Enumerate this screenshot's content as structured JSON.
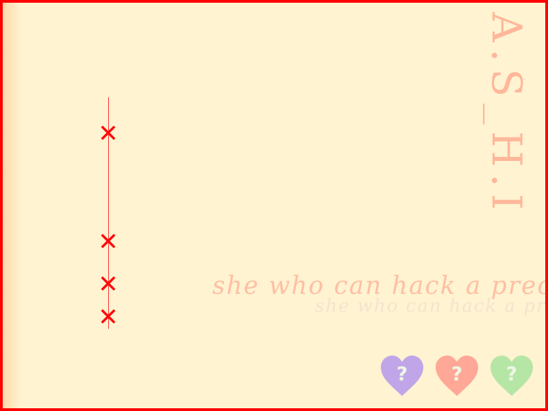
{
  "title": {
    "text": "A.S_H.I",
    "color": "#ffb79a"
  },
  "tagline": {
    "main": "she who can hack a precious heart..",
    "ghost": "she who can hack a precious heart..",
    "color": "#ffbfa3"
  },
  "timeline": {
    "line_color": "#ff2a2a",
    "mark_color": "#ff0a0a",
    "mark_glyph": "✕",
    "marks": [
      "✕",
      "✕",
      "✕",
      "✕"
    ]
  },
  "hearts": [
    {
      "icon": "heart-icon",
      "glyph": "?",
      "color": "#c0a6e8"
    },
    {
      "icon": "heart-icon",
      "glyph": "?",
      "color": "#ffa898"
    },
    {
      "icon": "heart-icon",
      "glyph": "?",
      "color": "#b6e6a6"
    }
  ],
  "colors": {
    "background": "#fff3d1",
    "border": "#ff0000"
  }
}
